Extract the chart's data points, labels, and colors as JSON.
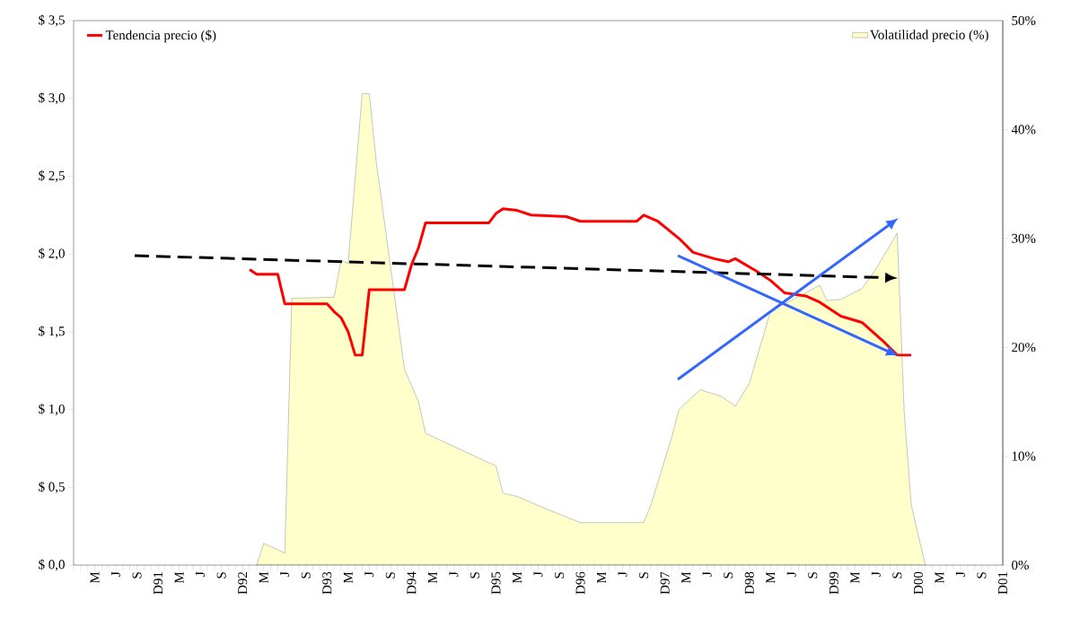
{
  "chart_data": {
    "type": "line",
    "xlim": [
      "1990-12",
      "2001-12"
    ],
    "xticks": [
      {
        "value": "1990-12",
        "label": null
      },
      {
        "value": "1991-03",
        "label": "M"
      },
      {
        "value": "1991-06",
        "label": "J"
      },
      {
        "value": "1991-09",
        "label": "S"
      },
      {
        "value": "1991-12",
        "label": "D91"
      },
      {
        "value": "1992-03",
        "label": "M"
      },
      {
        "value": "1992-06",
        "label": "J"
      },
      {
        "value": "1992-09",
        "label": "S"
      },
      {
        "value": "1992-12",
        "label": "D92"
      },
      {
        "value": "1993-03",
        "label": "M"
      },
      {
        "value": "1993-06",
        "label": "J"
      },
      {
        "value": "1993-09",
        "label": "S"
      },
      {
        "value": "1993-12",
        "label": "D93"
      },
      {
        "value": "1994-03",
        "label": "M"
      },
      {
        "value": "1994-06",
        "label": "J"
      },
      {
        "value": "1994-09",
        "label": "S"
      },
      {
        "value": "1994-12",
        "label": "D94"
      },
      {
        "value": "1995-03",
        "label": "M"
      },
      {
        "value": "1995-06",
        "label": "J"
      },
      {
        "value": "1995-09",
        "label": "S"
      },
      {
        "value": "1995-12",
        "label": "D95"
      },
      {
        "value": "1996-03",
        "label": "M"
      },
      {
        "value": "1996-06",
        "label": "J"
      },
      {
        "value": "1996-09",
        "label": "S"
      },
      {
        "value": "1996-12",
        "label": "D96"
      },
      {
        "value": "1997-03",
        "label": "M"
      },
      {
        "value": "1997-06",
        "label": "J"
      },
      {
        "value": "1997-09",
        "label": "S"
      },
      {
        "value": "1997-12",
        "label": "D97"
      },
      {
        "value": "1998-03",
        "label": "M"
      },
      {
        "value": "1998-06",
        "label": "J"
      },
      {
        "value": "1998-09",
        "label": "S"
      },
      {
        "value": "1998-12",
        "label": "D98"
      },
      {
        "value": "1999-03",
        "label": "M"
      },
      {
        "value": "1999-06",
        "label": "J"
      },
      {
        "value": "1999-09",
        "label": "S"
      },
      {
        "value": "1999-12",
        "label": "D99"
      },
      {
        "value": "2000-03",
        "label": "M"
      },
      {
        "value": "2000-06",
        "label": "J"
      },
      {
        "value": "2000-09",
        "label": "S"
      },
      {
        "value": "2000-12",
        "label": "D00"
      },
      {
        "value": "2001-03",
        "label": "M"
      },
      {
        "value": "2001-06",
        "label": "J"
      },
      {
        "value": "2001-09",
        "label": "S"
      },
      {
        "value": "2001-12",
        "label": "D01"
      }
    ],
    "ylim": [
      0,
      3.5
    ],
    "yticks": [
      {
        "value": 0,
        "label": "$ 0,0"
      },
      {
        "value": 0.5,
        "label": "$ 0,5"
      },
      {
        "value": 1,
        "label": "$ 1,0"
      },
      {
        "value": 1.5,
        "label": "$ 1,5"
      },
      {
        "value": 2,
        "label": "$ 2,0"
      },
      {
        "value": 2.5,
        "label": "$ 2,5"
      },
      {
        "value": 3,
        "label": "$ 3,0"
      },
      {
        "value": 3.5,
        "label": "$ 3,5"
      }
    ],
    "y2lim": [
      0,
      50
    ],
    "y2ticks": [
      {
        "value": 0,
        "label": "0%"
      },
      {
        "value": 10,
        "label": "10%"
      },
      {
        "value": 20,
        "label": "20%"
      },
      {
        "value": 30,
        "label": "30%"
      },
      {
        "value": 40,
        "label": "40%"
      },
      {
        "value": 50,
        "label": "50%"
      }
    ],
    "legend": "top",
    "series": [
      {
        "name": "Volatilidad precio (%)",
        "type": "area",
        "axis": "y2",
        "color": "#ffffcc",
        "x": [
          "1993-02",
          "1993-03",
          "1993-05",
          "1993-06",
          "1993-07",
          "1994-01",
          "1994-02",
          "1994-03",
          "1994-05",
          "1994-06",
          "1994-07",
          "1994-11",
          "1994-12",
          "1995-01",
          "1995-02",
          "1995-12",
          "1996-01",
          "1996-03",
          "1996-07",
          "1996-12",
          "1997-09",
          "1997-10",
          "1998-01",
          "1998-02",
          "1998-05",
          "1998-08",
          "1998-10",
          "1998-12",
          "1999-03",
          "1999-10",
          "1999-11",
          "2000-01",
          "2000-04",
          "2000-06",
          "2000-09",
          "2000-10",
          "2000-11",
          "2001-01"
        ],
        "values": [
          0,
          2.0,
          1.4,
          1.1,
          24.5,
          24.6,
          28.0,
          27.7,
          43.3,
          43.3,
          37.0,
          18.0,
          16.5,
          15.0,
          12.1,
          9.1,
          6.6,
          6.3,
          5.2,
          3.9,
          3.9,
          5.5,
          11.8,
          14.3,
          16.1,
          15.5,
          14.6,
          16.7,
          23.3,
          25.7,
          24.3,
          24.4,
          25.4,
          27.2,
          30.5,
          14.0,
          5.5,
          0
        ]
      },
      {
        "name": "Tendencia precio ($)",
        "color": "#ff0000",
        "x": [
          "1993-01",
          "1993-02",
          "1993-05",
          "1993-06",
          "1993-12",
          "1994-01",
          "1994-02",
          "1994-03",
          "1994-04",
          "1994-05",
          "1994-06",
          "1994-11",
          "1994-12",
          "1995-01",
          "1995-02",
          "1995-11",
          "1995-12",
          "1996-01",
          "1996-03",
          "1996-05",
          "1996-10",
          "1996-12",
          "1997-08",
          "1997-09",
          "1997-11",
          "1998-02",
          "1998-04",
          "1998-07",
          "1998-09",
          "1998-10",
          "1999-01",
          "1999-03",
          "1999-05",
          "1999-08",
          "1999-10",
          "2000-01",
          "2000-04",
          "2000-07",
          "2000-09",
          "2000-11"
        ],
        "values": [
          1.9,
          1.87,
          1.87,
          1.68,
          1.68,
          1.63,
          1.59,
          1.5,
          1.35,
          1.35,
          1.77,
          1.77,
          1.93,
          2.04,
          2.2,
          2.2,
          2.26,
          2.29,
          2.28,
          2.25,
          2.24,
          2.21,
          2.21,
          2.25,
          2.21,
          2.1,
          2.01,
          1.97,
          1.95,
          1.97,
          1.89,
          1.83,
          1.75,
          1.73,
          1.69,
          1.6,
          1.56,
          1.44,
          1.35,
          1.35
        ]
      }
    ]
  }
}
